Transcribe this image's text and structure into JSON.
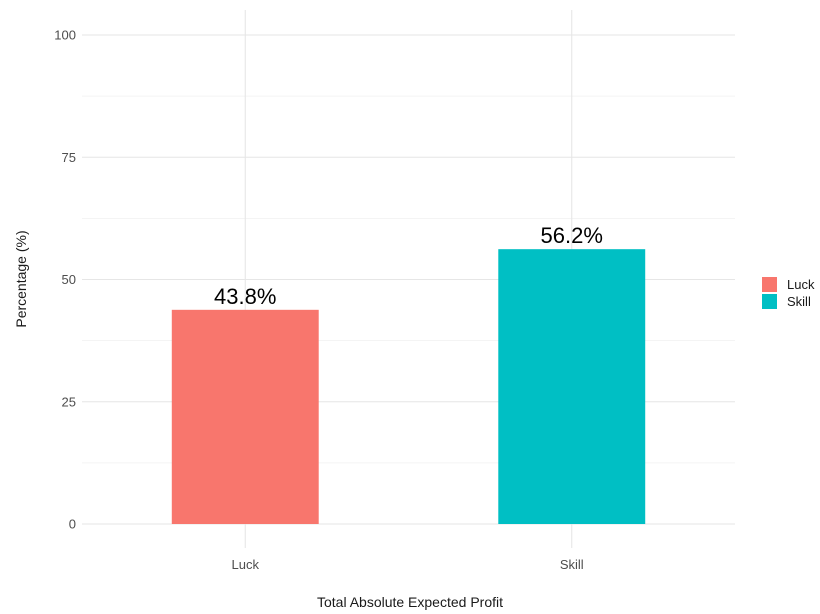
{
  "chart_data": {
    "type": "bar",
    "categories": [
      "Luck",
      "Skill"
    ],
    "values": [
      43.8,
      56.2
    ],
    "value_labels": [
      "43.8%",
      "56.2%"
    ],
    "colors": [
      "#F8766D",
      "#00BFC4"
    ],
    "title": "",
    "xlabel": "Total Absolute Expected Profit",
    "ylabel": "Percentage (%)",
    "ylim": [
      0,
      100
    ],
    "yticks": [
      0,
      25,
      50,
      75,
      100
    ],
    "ytick_labels": [
      "0",
      "25",
      "50",
      "75",
      "100"
    ],
    "grid": true,
    "legend": {
      "position": "right",
      "entries": [
        "Luck",
        "Skill"
      ]
    }
  }
}
